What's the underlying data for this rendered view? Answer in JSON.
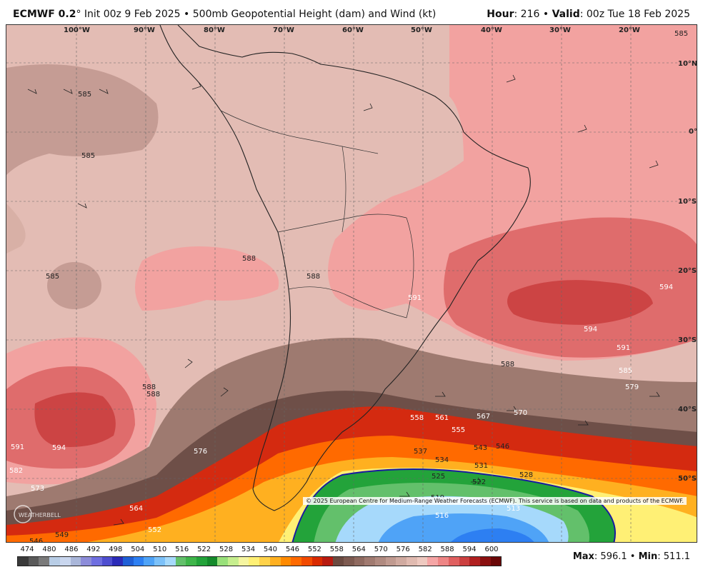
{
  "header": {
    "model": "ECMWF 0.2",
    "degree": "°",
    "init": "Init 00z 9 Feb 2025",
    "bullet": "•",
    "product": "500mb Geopotential Height (dam) and Wind (kt)",
    "hour_label": "Hour",
    "hour_value": ": 216",
    "valid_label": "Valid",
    "valid_value": ": 00z Tue 18 Feb 2025"
  },
  "map": {
    "lon_labels": [
      "100°W",
      "90°W",
      "80°W",
      "70°W",
      "60°W",
      "50°W",
      "40°W",
      "30°W",
      "20°W"
    ],
    "lat_labels": [
      "10°N",
      "0°",
      "10°S",
      "20°S",
      "30°S",
      "40°S",
      "50°S"
    ],
    "contour_labels": [
      "585",
      "585",
      "585",
      "588",
      "585",
      "588",
      "588",
      "591",
      "594",
      "594",
      "591",
      "588",
      "585",
      "579",
      "570",
      "567",
      "561",
      "558",
      "555",
      "543",
      "546",
      "537",
      "534",
      "531",
      "528",
      "525",
      "522",
      "519",
      "516",
      "513",
      "591",
      "594",
      "588",
      "582",
      "576",
      "573",
      "564",
      "552",
      "549",
      "546"
    ],
    "copyright": "© 2025 European Centre for Medium-Range Weather Forecasts (ECMWF). This service is based on data and products of the ECMWF.",
    "logo_text": "WEATHERBELL"
  },
  "colorbar": {
    "labels": [
      "474",
      "480",
      "486",
      "492",
      "498",
      "504",
      "510",
      "516",
      "522",
      "528",
      "534",
      "540",
      "546",
      "552",
      "558",
      "564",
      "570",
      "576",
      "582",
      "588",
      "594",
      "600"
    ],
    "colors": [
      "#3a3a3a",
      "#5a5a5a",
      "#7a7a7a",
      "#b8cde6",
      "#c9d6ee",
      "#a9b6d9",
      "#8c8cd9",
      "#6e6ee0",
      "#4e4ed0",
      "#2b2bb8",
      "#1f5fd6",
      "#2d7ff2",
      "#4fa3f7",
      "#7cc1f9",
      "#a6d9fb",
      "#63c06b",
      "#3fb54a",
      "#23a33a",
      "#148a2b",
      "#98e07a",
      "#c6ee8e",
      "#f5f5a0",
      "#fff075",
      "#ffd24a",
      "#ffb020",
      "#ff8a00",
      "#ff6a00",
      "#f24a00",
      "#d92a00",
      "#b81a10",
      "#6b4a40",
      "#7d5a50",
      "#8f6a60",
      "#a07a70",
      "#b08a80",
      "#c09a90",
      "#d0aaa0",
      "#e0bab0",
      "#eec9c0",
      "#f5a5a5",
      "#ee8585",
      "#e06060",
      "#cc4040",
      "#b02020",
      "#8a1010",
      "#6a0808"
    ]
  },
  "stats": {
    "max_label": "Max",
    "max_value": ": 596.1",
    "sep": "•",
    "min_label": "Min",
    "min_value": ": 511.1"
  }
}
